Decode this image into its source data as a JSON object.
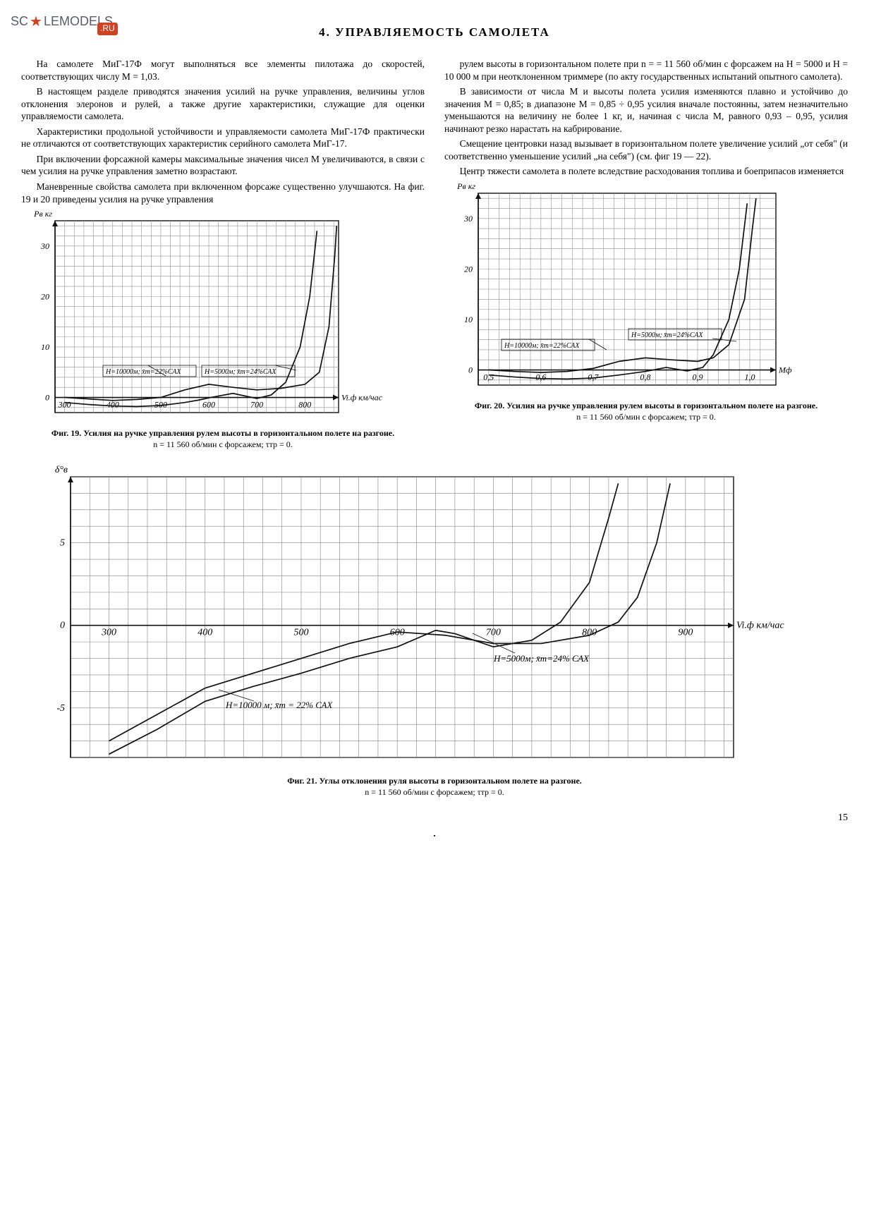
{
  "watermark": {
    "left": "SC",
    "star": "★",
    "right": "LEMODELS",
    "badge": ".RU"
  },
  "section_title": "4. УПРАВЛЯЕМОСТЬ  САМОЛЕТА",
  "left_col": {
    "p1": "На самолете МиГ-17Ф могут выполняться все элементы пилотажа до скоростей, соответствующих числу М = 1,03.",
    "p2": "В настоящем разделе приводятся значения усилий на ручке управления, величины углов отклонения элеронов и рулей, а также другие характеристики, служащие для оценки управляемости самолета.",
    "p3": "Характеристики продольной устойчивости и управляемости самолета МиГ-17Ф практически не отличаются от соответствующих характеристик серийного самолета МиГ-17.",
    "p4": "При включении форсажной камеры максимальные значения чисел М увеличиваются, в связи с чем усилия на ручке управления заметно возрастают.",
    "p5": "Маневренные свойства самолета при включенном форсаже существенно улучшаются. На фиг. 19 и 20 приведены усилия на ручке управления"
  },
  "right_col": {
    "p1": "рулем высоты в горизонтальном полете при n = = 11 560 об/мин с форсажем на Н = 5000 и Н = 10 000 м при неотклоненном триммере (по акту государственных испытаний опытного самолета).",
    "p2": "В зависимости от числа М и высоты полета усилия изменяются плавно и устойчиво до значения М = 0,85; в диапазоне М = 0,85 ÷ 0,95 усилия вначале постоянны, затем незначительно уменьшаются на величину не более 1 кг, и, начиная с числа М, равного 0,93 – 0,95, усилия начинают резко нарастать на кабрирование.",
    "p3": "Смещение центровки назад вызывает в горизонтальном полете увеличение усилий „от себя\" (и соответственно уменьшение усилий „на себя\") (см. фиг 19 — 22).",
    "p4": "Центр тяжести самолета в полете вследствие расходования топлива и боеприпасов изменяется"
  },
  "fig19": {
    "type": "line",
    "ylabel": "Pв кг",
    "yticks": [
      0,
      10,
      20,
      30
    ],
    "xticks": [
      300,
      400,
      500,
      600,
      700,
      800
    ],
    "xlabel_suffix": "Vi.ф км/час",
    "ylim": [
      -3,
      35
    ],
    "xlim": [
      280,
      870
    ],
    "annot1": "H=10000м; x̄т=22%САХ",
    "annot2": "H=5000м; x̄т=24%САХ",
    "series1": {
      "points": [
        [
          300,
          -1
        ],
        [
          350,
          -1.4
        ],
        [
          400,
          -1.7
        ],
        [
          450,
          -1.8
        ],
        [
          500,
          -1.6
        ],
        [
          550,
          -1
        ],
        [
          580,
          -0.5
        ],
        [
          604,
          0
        ],
        [
          650,
          0.8
        ],
        [
          700,
          -0.2
        ],
        [
          730,
          0.5
        ],
        [
          760,
          3
        ],
        [
          790,
          10
        ],
        [
          810,
          20
        ],
        [
          825,
          33
        ]
      ]
    },
    "series2": {
      "points": [
        [
          300,
          0
        ],
        [
          350,
          -0.3
        ],
        [
          400,
          -0.6
        ],
        [
          450,
          -0.4
        ],
        [
          500,
          0
        ],
        [
          550,
          1.5
        ],
        [
          600,
          2.6
        ],
        [
          650,
          2
        ],
        [
          700,
          1.5
        ],
        [
          750,
          1.8
        ],
        [
          800,
          2.6
        ],
        [
          830,
          5
        ],
        [
          850,
          14
        ],
        [
          862,
          28
        ],
        [
          866,
          34
        ]
      ]
    },
    "grid_color": "#909090",
    "line_color": "#111",
    "bg": "#fff",
    "caption_title": "Фиг. 19. Усилия на ручке управления рулем высоты в горизонтальном полете на разгоне.",
    "caption_sub": "n = 11 560 об/мин с форсажем; τтр = 0."
  },
  "fig20": {
    "type": "line",
    "ylabel": "Pв кг",
    "yticks": [
      0,
      10,
      20,
      30
    ],
    "xticks": [
      0.5,
      0.6,
      0.7,
      0.8,
      0.9,
      1.0
    ],
    "xlabel_suffix": "Mф",
    "ylim": [
      -3,
      35
    ],
    "xlim": [
      0.48,
      1.05
    ],
    "annot1": "H=10000м; x̄т=22%САХ",
    "annot2": "H=5000м; x̄т=24%САХ",
    "series1": {
      "points": [
        [
          0.5,
          -1
        ],
        [
          0.55,
          -1.4
        ],
        [
          0.6,
          -1.7
        ],
        [
          0.65,
          -1.8
        ],
        [
          0.7,
          -1.6
        ],
        [
          0.75,
          -1
        ],
        [
          0.8,
          -0.3
        ],
        [
          0.84,
          0.5
        ],
        [
          0.88,
          -0.2
        ],
        [
          0.91,
          0.5
        ],
        [
          0.93,
          3
        ],
        [
          0.96,
          10
        ],
        [
          0.98,
          20
        ],
        [
          0.995,
          33
        ]
      ]
    },
    "series2": {
      "points": [
        [
          0.5,
          0
        ],
        [
          0.55,
          -0.3
        ],
        [
          0.6,
          -0.5
        ],
        [
          0.65,
          -0.3
        ],
        [
          0.7,
          0.3
        ],
        [
          0.75,
          1.7
        ],
        [
          0.8,
          2.4
        ],
        [
          0.85,
          2
        ],
        [
          0.9,
          1.7
        ],
        [
          0.93,
          2.4
        ],
        [
          0.96,
          5
        ],
        [
          0.99,
          14
        ],
        [
          1.005,
          28
        ],
        [
          1.012,
          34
        ]
      ]
    },
    "grid_color": "#909090",
    "line_color": "#111",
    "bg": "#fff",
    "caption_title": "Фиг. 20. Усилия на ручке управления рулем высоты в горизонтальном полете на разгоне.",
    "caption_sub": "n = 11 560 об/мин с форсажем; τтр = 0."
  },
  "fig21": {
    "type": "line",
    "ylabel": "δ°в",
    "yticks": [
      -5,
      0,
      5
    ],
    "xticks": [
      300,
      400,
      500,
      600,
      700,
      800,
      900
    ],
    "xlabel_suffix": "Vi.ф км/час",
    "ylim": [
      -8,
      9
    ],
    "xlim": [
      260,
      950
    ],
    "annot1": "Н=10000 м; x̄т = 22% САХ",
    "annot2": "Н=5000м; x̄т=24% САХ",
    "series1": {
      "points": [
        [
          300,
          -7.8
        ],
        [
          350,
          -6.3
        ],
        [
          400,
          -4.6
        ],
        [
          450,
          -3.7
        ],
        [
          500,
          -2.9
        ],
        [
          550,
          -2.0
        ],
        [
          600,
          -1.3
        ],
        [
          640,
          -0.3
        ],
        [
          660,
          -0.5
        ],
        [
          700,
          -1.3
        ],
        [
          740,
          -0.9
        ],
        [
          770,
          0.2
        ],
        [
          800,
          2.6
        ],
        [
          820,
          6.5
        ],
        [
          830,
          8.6
        ]
      ]
    },
    "series2": {
      "points": [
        [
          300,
          -7.0
        ],
        [
          350,
          -5.4
        ],
        [
          400,
          -3.8
        ],
        [
          450,
          -2.9
        ],
        [
          500,
          -2.0
        ],
        [
          550,
          -1.1
        ],
        [
          600,
          -0.4
        ],
        [
          650,
          -0.6
        ],
        [
          700,
          -1.1
        ],
        [
          750,
          -1.1
        ],
        [
          800,
          -0.6
        ],
        [
          830,
          0.2
        ],
        [
          850,
          1.7
        ],
        [
          870,
          5.0
        ],
        [
          884,
          8.6
        ]
      ]
    },
    "grid_color": "#808080",
    "line_color": "#111",
    "bg": "#fff",
    "caption_title": "Фиг. 21. Углы отклонения руля высоты в горизонтальном полете на разгоне.",
    "caption_sub": "n = 11 560 об/мин с форсажем; τтр = 0."
  },
  "page_number": "15",
  "dot": "."
}
